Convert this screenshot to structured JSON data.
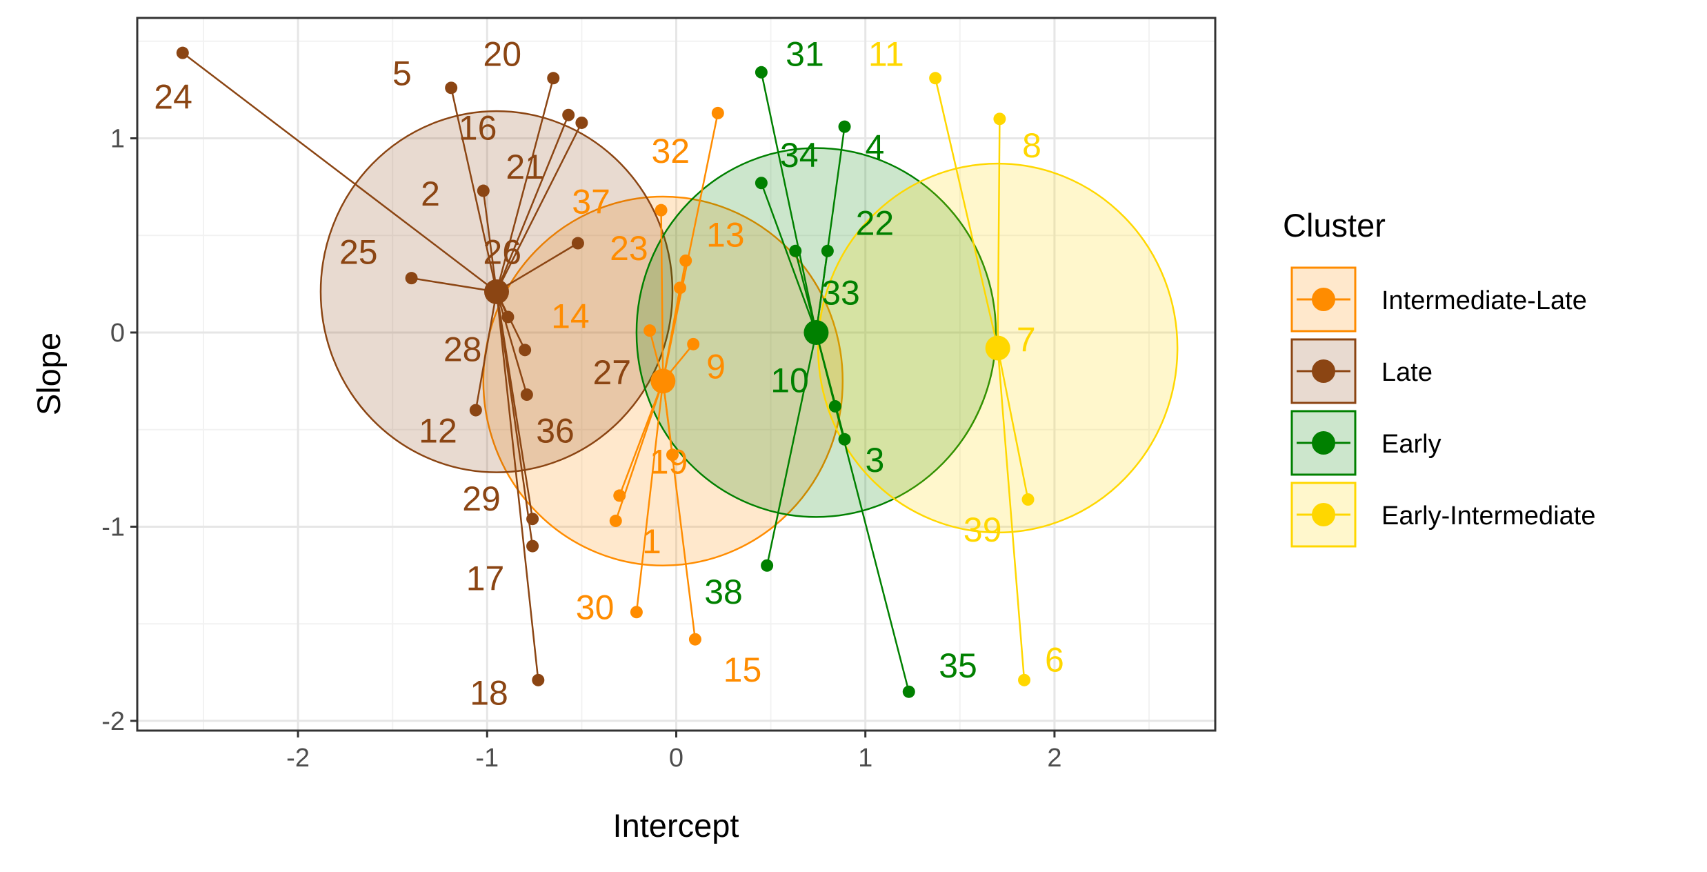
{
  "chart_data": {
    "type": "scatter",
    "xlabel": "Intercept",
    "ylabel": "Slope",
    "xlim": [
      -2.85,
      2.85
    ],
    "ylim": [
      -2.05,
      1.62
    ],
    "x_ticks": [
      -2,
      -1,
      0,
      1,
      2
    ],
    "y_ticks": [
      -2,
      -1,
      0,
      1
    ],
    "x_tick_labels": [
      "-2",
      "-1",
      "0",
      "1",
      "2"
    ],
    "y_tick_labels": [
      "-2",
      "-1",
      "0",
      "1"
    ],
    "grid": true,
    "legend": {
      "title": "Cluster",
      "position": "right",
      "entries": [
        "Intermediate-Late",
        "Late",
        "Early",
        "Early-Intermediate"
      ]
    },
    "series": [
      {
        "name": "Intermediate-Late",
        "color": "#FF8C00",
        "centroid": [
          -0.07,
          -0.25
        ],
        "radius": 0.95,
        "points": [
          {
            "id": "32",
            "x": 0.22,
            "y": 1.13
          },
          {
            "id": "37",
            "x": -0.08,
            "y": 0.63
          },
          {
            "id": "13",
            "x": 0.05,
            "y": 0.37
          },
          {
            "id": "23",
            "x": 0.02,
            "y": 0.23
          },
          {
            "id": "14",
            "x": -0.14,
            "y": 0.01
          },
          {
            "id": "9",
            "x": 0.09,
            "y": -0.06
          },
          {
            "id": "19",
            "x": -0.02,
            "y": -0.63
          },
          {
            "id": "1",
            "x": -0.3,
            "y": -0.84
          },
          {
            "id": "",
            "x": -0.32,
            "y": -0.97
          },
          {
            "id": "30",
            "x": -0.21,
            "y": -1.44
          },
          {
            "id": "15",
            "x": 0.1,
            "y": -1.58
          }
        ]
      },
      {
        "name": "Late",
        "color": "#8B4513",
        "centroid": [
          -0.95,
          0.21
        ],
        "radius": 0.93,
        "points": [
          {
            "id": "24",
            "x": -2.61,
            "y": 1.44
          },
          {
            "id": "5",
            "x": -1.19,
            "y": 1.26
          },
          {
            "id": "20",
            "x": -0.65,
            "y": 1.31
          },
          {
            "id": "16",
            "x": -0.57,
            "y": 1.12
          },
          {
            "id": "21",
            "x": -0.5,
            "y": 1.08
          },
          {
            "id": "2",
            "x": -1.02,
            "y": 0.73
          },
          {
            "id": "26",
            "x": -0.52,
            "y": 0.46
          },
          {
            "id": "25",
            "x": -1.4,
            "y": 0.28
          },
          {
            "id": "28",
            "x": -0.89,
            "y": 0.08
          },
          {
            "id": "27",
            "x": -0.8,
            "y": -0.09
          },
          {
            "id": "12",
            "x": -1.06,
            "y": -0.4
          },
          {
            "id": "36",
            "x": -0.79,
            "y": -0.32
          },
          {
            "id": "29",
            "x": -0.76,
            "y": -0.96
          },
          {
            "id": "17",
            "x": -0.76,
            "y": -1.1
          },
          {
            "id": "18",
            "x": -0.73,
            "y": -1.79
          }
        ]
      },
      {
        "name": "Early",
        "color": "#008000",
        "centroid": [
          0.74,
          0.0
        ],
        "radius": 0.95,
        "points": [
          {
            "id": "31",
            "x": 0.45,
            "y": 1.34
          },
          {
            "id": "4",
            "x": 0.89,
            "y": 1.06
          },
          {
            "id": "34",
            "x": 0.45,
            "y": 0.77
          },
          {
            "id": "22",
            "x": 0.63,
            "y": 0.42
          },
          {
            "id": "33",
            "x": 0.8,
            "y": 0.42
          },
          {
            "id": "10",
            "x": 0.84,
            "y": -0.38
          },
          {
            "id": "3",
            "x": 0.89,
            "y": -0.55
          },
          {
            "id": "38",
            "x": 0.48,
            "y": -1.2
          },
          {
            "id": "35",
            "x": 1.23,
            "y": -1.85
          }
        ]
      },
      {
        "name": "Early-Intermediate",
        "color": "#FFD700",
        "centroid": [
          1.7,
          -0.08
        ],
        "radius": 0.95,
        "points": [
          {
            "id": "11",
            "x": 1.37,
            "y": 1.31
          },
          {
            "id": "8",
            "x": 1.71,
            "y": 1.1
          },
          {
            "id": "7",
            "x": 1.7,
            "y": -0.08
          },
          {
            "id": "39",
            "x": 1.86,
            "y": -0.86
          },
          {
            "id": "6",
            "x": 1.84,
            "y": -1.79
          }
        ]
      }
    ],
    "labels": [
      {
        "text": "24",
        "x": -2.66,
        "y": 1.2,
        "color": "#8B4513"
      },
      {
        "text": "5",
        "x": -1.45,
        "y": 1.32,
        "color": "#8B4513"
      },
      {
        "text": "20",
        "x": -0.92,
        "y": 1.42,
        "color": "#8B4513"
      },
      {
        "text": "16",
        "x": -1.05,
        "y": 1.04,
        "color": "#8B4513"
      },
      {
        "text": "21",
        "x": -0.8,
        "y": 0.84,
        "color": "#8B4513"
      },
      {
        "text": "2",
        "x": -1.3,
        "y": 0.7,
        "color": "#8B4513"
      },
      {
        "text": "25",
        "x": -1.68,
        "y": 0.4,
        "color": "#8B4513"
      },
      {
        "text": "26",
        "x": -0.92,
        "y": 0.4,
        "color": "#8B4513"
      },
      {
        "text": "28",
        "x": -1.13,
        "y": -0.1,
        "color": "#8B4513"
      },
      {
        "text": "27",
        "x": -0.34,
        "y": -0.22,
        "color": "#8B4513"
      },
      {
        "text": "12",
        "x": -1.26,
        "y": -0.52,
        "color": "#8B4513"
      },
      {
        "text": "36",
        "x": -0.64,
        "y": -0.52,
        "color": "#8B4513"
      },
      {
        "text": "29",
        "x": -1.03,
        "y": -0.87,
        "color": "#8B4513"
      },
      {
        "text": "17",
        "x": -1.01,
        "y": -1.28,
        "color": "#8B4513"
      },
      {
        "text": "18",
        "x": -0.99,
        "y": -1.87,
        "color": "#8B4513"
      },
      {
        "text": "32",
        "x": -0.03,
        "y": 0.92,
        "color": "#FF8C00"
      },
      {
        "text": "37",
        "x": -0.45,
        "y": 0.66,
        "color": "#FF8C00"
      },
      {
        "text": "13",
        "x": 0.26,
        "y": 0.49,
        "color": "#FF8C00"
      },
      {
        "text": "23",
        "x": -0.25,
        "y": 0.42,
        "color": "#FF8C00"
      },
      {
        "text": "14",
        "x": -0.56,
        "y": 0.07,
        "color": "#FF8C00"
      },
      {
        "text": "9",
        "x": 0.21,
        "y": -0.19,
        "color": "#FF8C00"
      },
      {
        "text": "19",
        "x": -0.04,
        "y": -0.68,
        "color": "#FF8C00"
      },
      {
        "text": "1",
        "x": -0.13,
        "y": -1.09,
        "color": "#FF8C00"
      },
      {
        "text": "30",
        "x": -0.43,
        "y": -1.43,
        "color": "#FF8C00"
      },
      {
        "text": "15",
        "x": 0.35,
        "y": -1.75,
        "color": "#FF8C00"
      },
      {
        "text": "31",
        "x": 0.68,
        "y": 1.42,
        "color": "#008000"
      },
      {
        "text": "4",
        "x": 1.05,
        "y": 0.94,
        "color": "#008000"
      },
      {
        "text": "34",
        "x": 0.65,
        "y": 0.9,
        "color": "#008000"
      },
      {
        "text": "22",
        "x": 1.05,
        "y": 0.55,
        "color": "#008000"
      },
      {
        "text": "33",
        "x": 0.87,
        "y": 0.19,
        "color": "#008000"
      },
      {
        "text": "10",
        "x": 0.6,
        "y": -0.26,
        "color": "#008000"
      },
      {
        "text": "3",
        "x": 1.05,
        "y": -0.67,
        "color": "#008000"
      },
      {
        "text": "38",
        "x": 0.25,
        "y": -1.35,
        "color": "#008000"
      },
      {
        "text": "35",
        "x": 1.49,
        "y": -1.73,
        "color": "#008000"
      },
      {
        "text": "11",
        "x": 1.11,
        "y": 1.42,
        "color": "#FFD700"
      },
      {
        "text": "8",
        "x": 1.88,
        "y": 0.95,
        "color": "#FFD700"
      },
      {
        "text": "7",
        "x": 1.85,
        "y": -0.05,
        "color": "#FFD700"
      },
      {
        "text": "39",
        "x": 1.62,
        "y": -1.03,
        "color": "#FFD700"
      },
      {
        "text": "6",
        "x": 2.0,
        "y": -1.7,
        "color": "#FFD700"
      }
    ]
  }
}
